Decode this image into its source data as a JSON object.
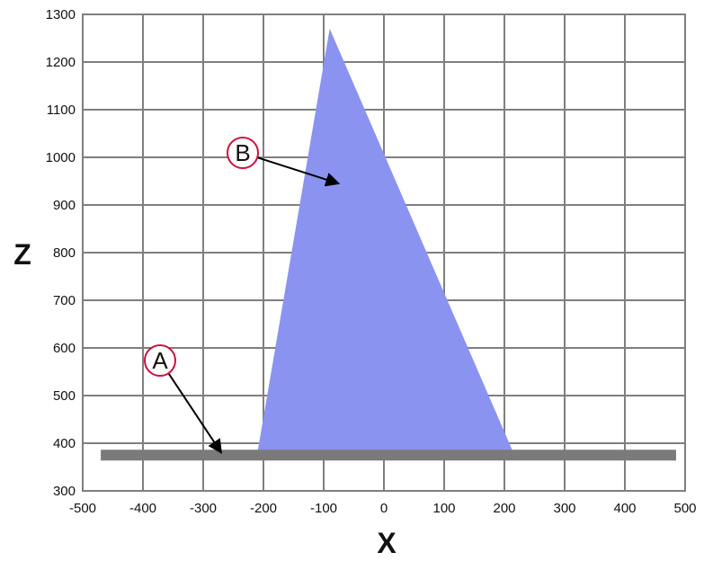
{
  "chart_data": {
    "type": "area",
    "xlabel": "X",
    "ylabel": "Z",
    "xlim": [
      -500,
      500
    ],
    "ylim": [
      300,
      1300
    ],
    "x_ticks": [
      -500,
      -400,
      -300,
      -200,
      -100,
      0,
      100,
      200,
      300,
      400,
      500
    ],
    "y_ticks": [
      300,
      400,
      500,
      600,
      700,
      800,
      900,
      1000,
      1100,
      1200,
      1300
    ],
    "grid": true,
    "shapes": [
      {
        "id": "B",
        "kind": "polygon",
        "points": [
          [
            -90,
            1270
          ],
          [
            215,
            380
          ],
          [
            -210,
            380
          ]
        ],
        "color": "#8b93f0"
      },
      {
        "id": "A",
        "kind": "bar",
        "x_from": -470,
        "x_to": 485,
        "z": 375,
        "color": "#7a7a7a"
      }
    ],
    "callouts": [
      {
        "label": "B",
        "target": [
          -75,
          945
        ]
      },
      {
        "label": "A",
        "target": [
          -270,
          380
        ]
      }
    ],
    "colors": {
      "grid": "#7f7f7f",
      "callout_ring": "#d01040",
      "arrow": "#000000"
    }
  }
}
